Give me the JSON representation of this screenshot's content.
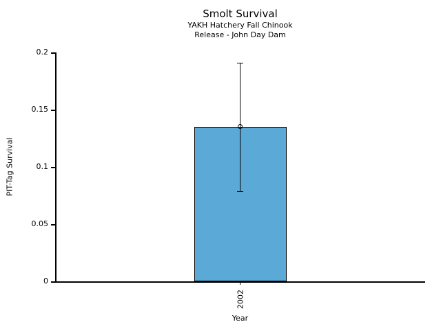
{
  "chart_data": {
    "type": "bar",
    "title": "Smolt Survival",
    "subtitle_lines": [
      "YAKH Hatchery Fall Chinook",
      "Release - John Day Dam"
    ],
    "xlabel": "Year",
    "ylabel": "PIT-Tag Survival",
    "categories": [
      "2002"
    ],
    "values": [
      0.135
    ],
    "error_bars": [
      {
        "low": 0.079,
        "high": 0.191
      }
    ],
    "point_markers": [
      0.135
    ],
    "marker_style": "open-circle",
    "ylim": [
      0,
      0.2
    ],
    "yticks": [
      0,
      0.05,
      0.1,
      0.15,
      0.2
    ],
    "ytick_labels": [
      "0",
      "0.05",
      "0.1",
      "0.15",
      "0.2"
    ],
    "grid": false,
    "legend": "none",
    "bar_color": "#5AA9D6",
    "edge_color": "#000000",
    "background_color": "#FFFFFF"
  }
}
